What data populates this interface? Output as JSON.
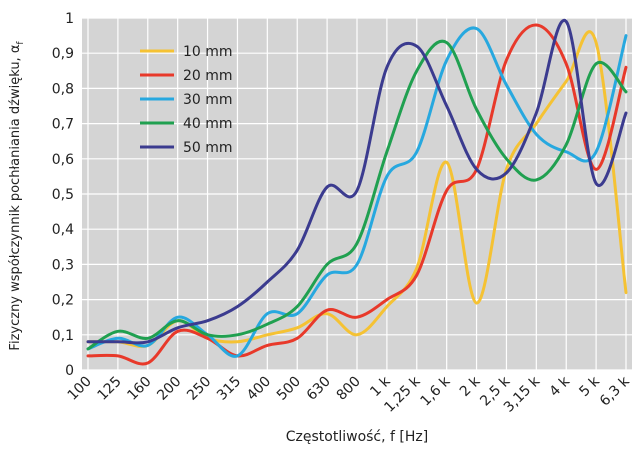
{
  "chart_data": {
    "type": "line",
    "xlabel": "Częstotliwość, f [Hz]",
    "ylabel": "Fizyczny współczynnik pochłaniania dźwięku, α",
    "ylabel_sub": "f",
    "categories": [
      "100",
      "125",
      "160",
      "200",
      "250",
      "315",
      "400",
      "500",
      "630",
      "800",
      "1 k",
      "1,25 k",
      "1,6 k",
      "2 k",
      "2,5 k",
      "3,15 k",
      "4 k",
      "5 k",
      "6,3 k"
    ],
    "ylim": [
      0,
      1
    ],
    "yticks": [
      "0",
      "0,1",
      "0,2",
      "0,3",
      "0,4",
      "0,5",
      "0,6",
      "0,7",
      "0,8",
      "0,9",
      "1"
    ],
    "grid": true,
    "legend_position": "top-left",
    "series": [
      {
        "name": "10 mm",
        "color": "#f5c233",
        "values": [
          0.08,
          0.08,
          0.07,
          0.14,
          0.09,
          0.08,
          0.1,
          0.12,
          0.16,
          0.1,
          0.18,
          0.29,
          0.59,
          0.19,
          0.57,
          0.7,
          0.82,
          0.93,
          0.22
        ]
      },
      {
        "name": "20 mm",
        "color": "#e8392a",
        "values": [
          0.04,
          0.04,
          0.02,
          0.11,
          0.09,
          0.04,
          0.07,
          0.09,
          0.17,
          0.15,
          0.2,
          0.27,
          0.51,
          0.57,
          0.88,
          0.98,
          0.87,
          0.57,
          0.86
        ]
      },
      {
        "name": "30 mm",
        "color": "#27a8df",
        "values": [
          0.06,
          0.09,
          0.07,
          0.15,
          0.1,
          0.04,
          0.16,
          0.16,
          0.27,
          0.3,
          0.55,
          0.62,
          0.88,
          0.97,
          0.81,
          0.67,
          0.62,
          0.62,
          0.95
        ]
      },
      {
        "name": "40 mm",
        "color": "#20a050",
        "values": [
          0.06,
          0.11,
          0.09,
          0.14,
          0.1,
          0.1,
          0.13,
          0.18,
          0.3,
          0.36,
          0.62,
          0.85,
          0.93,
          0.74,
          0.6,
          0.54,
          0.64,
          0.87,
          0.79
        ]
      },
      {
        "name": "50 mm",
        "color": "#3b3b8f",
        "values": [
          0.08,
          0.08,
          0.08,
          0.12,
          0.14,
          0.18,
          0.25,
          0.34,
          0.52,
          0.51,
          0.86,
          0.92,
          0.75,
          0.57,
          0.56,
          0.73,
          0.99,
          0.53,
          0.73
        ]
      }
    ]
  }
}
